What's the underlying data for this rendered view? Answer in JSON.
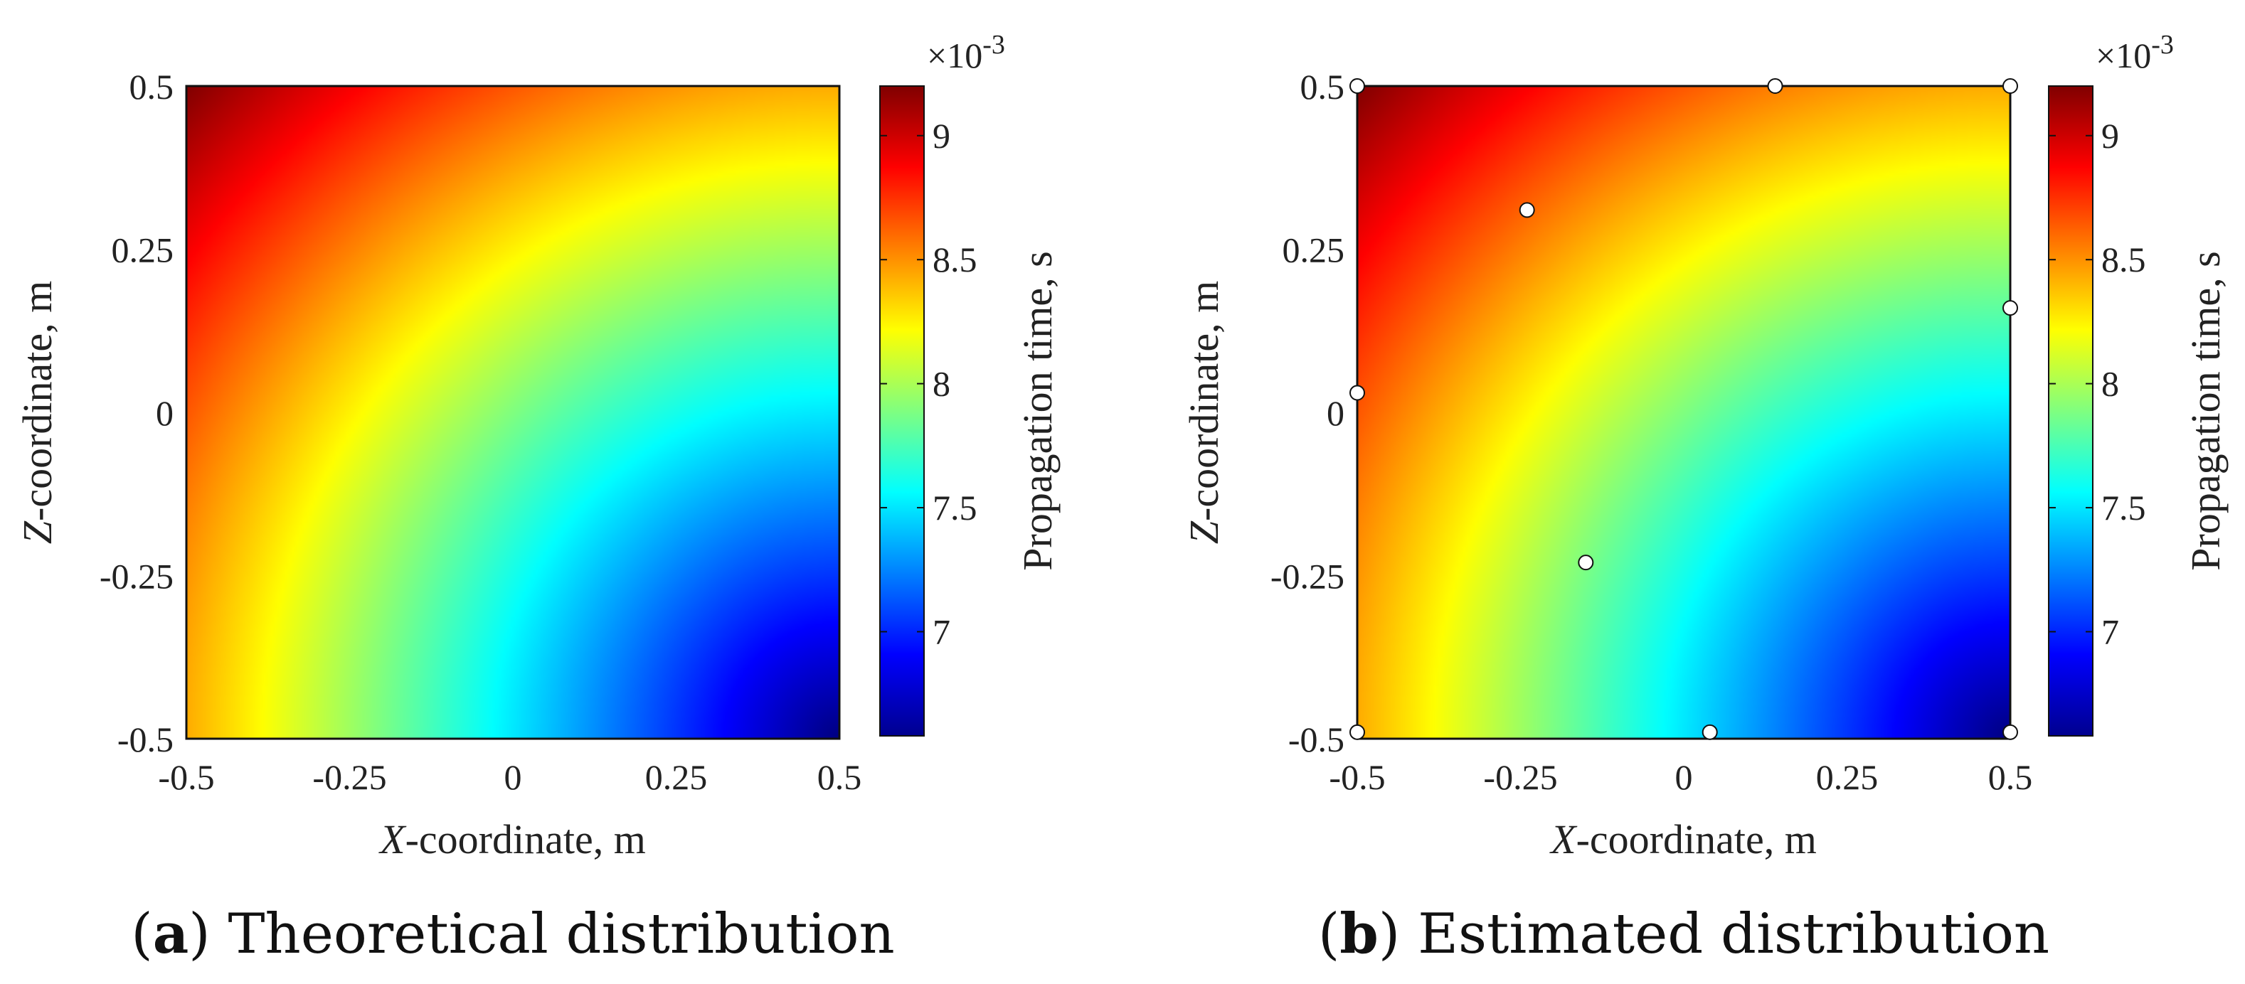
{
  "chart_data": [
    {
      "type": "heatmap",
      "caption_letter": "a",
      "caption_text": "Theoretical distribution",
      "xlabel_var": "X",
      "xlabel_rest": "-coordinate, m",
      "ylabel_var": "Z",
      "ylabel_rest": "-coordinate, m",
      "xlim": [
        -0.5,
        0.5
      ],
      "ylim": [
        -0.5,
        0.5
      ],
      "x_ticks": [
        "-0.5",
        "-0.25",
        "0",
        "0.25",
        "0.5"
      ],
      "y_ticks": [
        "0.5",
        "0.25",
        "0",
        "-0.25",
        "-0.5"
      ],
      "colorbar": {
        "label": "Propagation time, s",
        "exponent_base": "×10",
        "exponent_power": "-3",
        "range": [
          6.58,
          9.2
        ],
        "ticks": [
          "9",
          "8.5",
          "8",
          "7.5",
          "7"
        ]
      },
      "points": []
    },
    {
      "type": "heatmap",
      "caption_letter": "b",
      "caption_text": "Estimated distribution",
      "xlabel_var": "X",
      "xlabel_rest": "-coordinate, m",
      "ylabel_var": "Z",
      "ylabel_rest": "-coordinate, m",
      "xlim": [
        -0.5,
        0.5
      ],
      "ylim": [
        -0.5,
        0.5
      ],
      "x_ticks": [
        "-0.5",
        "-0.25",
        "0",
        "0.25",
        "0.5"
      ],
      "y_ticks": [
        "0.5",
        "0.25",
        "0",
        "-0.25",
        "-0.5"
      ],
      "colorbar": {
        "label": "Propagation time, s",
        "exponent_base": "×10",
        "exponent_power": "-3",
        "range": [
          6.58,
          9.2
        ],
        "ticks": [
          "9",
          "8.5",
          "8",
          "7.5",
          "7"
        ]
      },
      "points": [
        {
          "x": -0.5,
          "z": 0.5
        },
        {
          "x": 0.14,
          "z": 0.5
        },
        {
          "x": 0.5,
          "z": 0.5
        },
        {
          "x": -0.24,
          "z": 0.31
        },
        {
          "x": 0.5,
          "z": 0.16
        },
        {
          "x": -0.5,
          "z": 0.03
        },
        {
          "x": -0.15,
          "z": -0.23
        },
        {
          "x": -0.5,
          "z": -0.49
        },
        {
          "x": 0.04,
          "z": -0.49
        },
        {
          "x": 0.5,
          "z": -0.49
        }
      ]
    }
  ]
}
